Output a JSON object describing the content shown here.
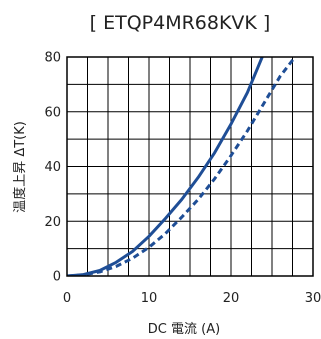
{
  "chart_data": {
    "type": "line",
    "title": "[ ETQP4MR68KVK ]",
    "xlabel": "DC 電流 (A)",
    "ylabel": "温度上昇 ΔT(K)",
    "xlim": [
      0,
      30
    ],
    "ylim": [
      0,
      80
    ],
    "xticks": [
      "0",
      "10",
      "20",
      "30"
    ],
    "yticks": [
      "0",
      "20",
      "40",
      "60",
      "80"
    ],
    "grid": true,
    "legend": "none",
    "color": "#1f4e96",
    "series": [
      {
        "style": "solid",
        "points": [
          [
            0,
            0
          ],
          [
            2,
            0.5
          ],
          [
            4,
            2
          ],
          [
            6,
            5
          ],
          [
            8,
            9
          ],
          [
            10,
            14.5
          ],
          [
            12,
            21
          ],
          [
            14,
            28
          ],
          [
            16,
            36
          ],
          [
            18,
            45
          ],
          [
            20,
            55.5
          ],
          [
            22,
            67
          ],
          [
            23.8,
            80
          ]
        ]
      },
      {
        "style": "dashed",
        "points": [
          [
            0,
            0
          ],
          [
            2,
            0.4
          ],
          [
            4,
            1.5
          ],
          [
            6,
            3.5
          ],
          [
            8,
            6.5
          ],
          [
            10,
            10.5
          ],
          [
            12,
            15.5
          ],
          [
            14,
            21.5
          ],
          [
            16,
            28
          ],
          [
            18,
            35.5
          ],
          [
            20,
            44
          ],
          [
            22,
            53
          ],
          [
            24,
            63
          ],
          [
            26,
            73
          ],
          [
            27.8,
            80
          ]
        ]
      }
    ]
  }
}
